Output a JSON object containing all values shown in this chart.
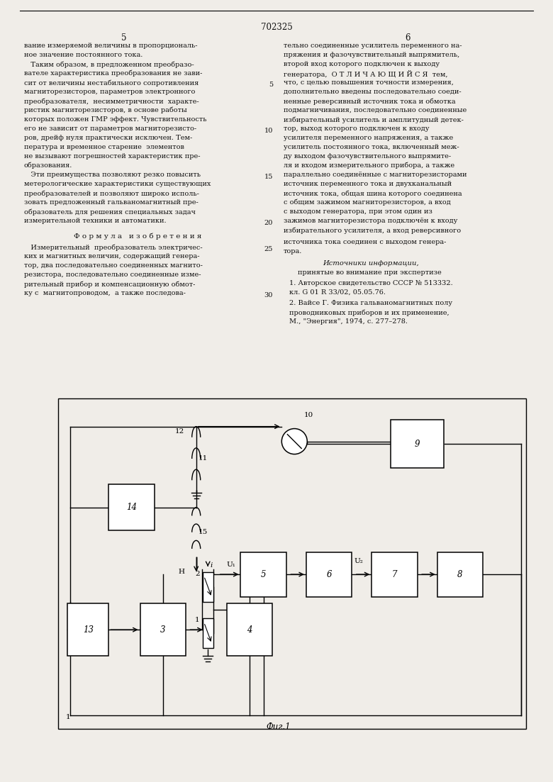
{
  "page_number": "702325",
  "col_left_num": "5",
  "col_right_num": "6",
  "bg": "#f0ede8",
  "fg": "#111111",
  "col1_lines": [
    "вание измеряемой величины в пропорциональ-",
    "ное значение постоянного тока.",
    "   Таким образом, в предложенном преобразо-",
    "вателе характеристика преобразования не зави-",
    "сит от величины нестабильного сопротивления",
    "магниторезисторов, параметров электронного",
    "преобразователя,  несимметричности  характе-",
    "ристик магниторезисторов, в основе работы",
    "которых положен ГМР эффект. Чувствительность",
    "его не зависит от параметров магниторезисто-",
    "ров, дрейф нуля практически исключен. Тем-",
    "пература и временное старение  элементов",
    "не вызывают погрешностей характеристик пре-",
    "образования.",
    "   Эти преимущества позволяют резко повысить",
    "метерологические характеристики существующих",
    "преобразователей и позволяют широко исполь-",
    "зовать предложенный гальваномагнитный пре-",
    "образователь для решения специальных задач",
    "измерительной техники и автоматики."
  ],
  "formula_header": "Ф о р м у л а   и з о б р е т е н и я",
  "formula_lines": [
    "   Измерительный  преобразователь электричес-",
    "ких и магнитных величин, содержащий генера-",
    "тор, два последовательно соединенных магнито-",
    "резистора, последовательно соединенные изме-",
    "рительный прибор и компенсационную обмот-",
    "ку с  магнитопроводом,  а также последова-"
  ],
  "col2_lines": [
    "тельно соединенные усилитель переменного на-",
    "пряжения и фазочувствительный выпрямитель,",
    "второй вход которого подключен к выходу",
    "генератора,  О Т Л И Ч А Ю Щ И Й С Я  тем,",
    "что, с целью повышения точности измерения,",
    "дополнительно введены последовательно соеди-",
    "ненные реверсивный источник тока и обмотка",
    "подмагничивания, последовательно соединенные",
    "избирательный усилитель и амплитудный детек-",
    "тор, выход которого подключен к входу",
    "усилителя переменного напряжения, а также",
    "усилитель постоянного тока, включенный меж-",
    "ду выходом фазочувствительного выпрямите-",
    "ля и входом измерительного прибора, а также",
    "параллельно соединённые с магниторезисторами",
    "источник переменного тока и двухканальный",
    "источник тока, общая шина которого соединена",
    "с общим зажимом магниторезисторов, а вход",
    "с выходом генератора, при этом один из",
    "зажимов магниторезистора подключён к входу",
    "избирательного усилителя, а вход реверсивного"
  ],
  "col2_last": [
    "источника тока соединен с выходом генера-",
    "тора."
  ],
  "sources_header": "Источники информации,",
  "sources_sub": "принятые во внимание при экспертизе",
  "source1a": "1. Авторское свидетельство СССР № 513332.",
  "source1b": "кл. G 01 R 33/02, 05.05.76.",
  "source2a": "2. Вайсе Г. Физика гальваномагнитных полу",
  "source2b": "проводниковых приборов и их применение,",
  "source2c": "М., \"Энергия\", 1974, с. 277–278.",
  "fig_caption": "Фиг.1",
  "line_nums": [
    5,
    10,
    15,
    20,
    25,
    30
  ]
}
